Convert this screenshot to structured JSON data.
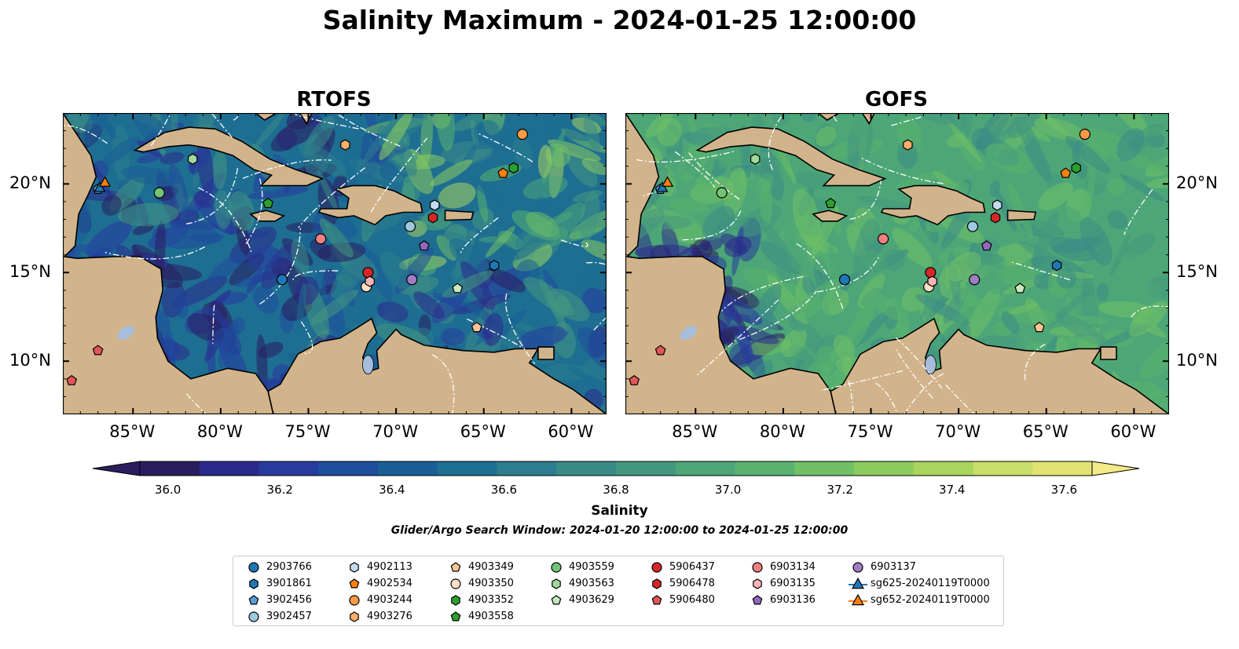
{
  "title": "Salinity Maximum - 2024-01-25 12:00:00",
  "panels": [
    {
      "title": "RTOFS"
    },
    {
      "title": "GOFS"
    }
  ],
  "axes": {
    "lon_ticks": [
      "85°W",
      "80°W",
      "75°W",
      "70°W",
      "65°W",
      "60°W"
    ],
    "lat_ticks": [
      "20°N",
      "15°N",
      "10°N"
    ]
  },
  "colorbar": {
    "label": "Salinity",
    "ticks": [
      "36.0",
      "36.2",
      "36.4",
      "36.6",
      "36.8",
      "37.0",
      "37.2",
      "37.4",
      "37.6"
    ],
    "min": 35.95,
    "max": 37.65,
    "colors": [
      "#2a1d5e",
      "#2b2a8c",
      "#273a9e",
      "#1f4d9c",
      "#1a5e96",
      "#1e6e92",
      "#2c7d8d",
      "#3a8b86",
      "#44977f",
      "#4da677",
      "#59b36e",
      "#71c066",
      "#8ccc5e",
      "#aad55d",
      "#c8de68",
      "#e2e373"
    ],
    "extend_low": "#2a1d5e",
    "extend_high": "#f4ea88"
  },
  "search_window": "Glider/Argo Search Window: 2024-01-20 12:00:00 to 2024-01-25 12:00:00",
  "legend": [
    {
      "label": "2903766",
      "marker": "circle",
      "color": "#1f77b4"
    },
    {
      "label": "3901861",
      "marker": "hexagon",
      "color": "#1f77b4"
    },
    {
      "label": "3902456",
      "marker": "pentagon",
      "color": "#5a9bd5"
    },
    {
      "label": "3902457",
      "marker": "circle",
      "color": "#9ecae1"
    },
    {
      "label": "4902113",
      "marker": "hexagon",
      "color": "#c6dbef"
    },
    {
      "label": "4902534",
      "marker": "pentagon",
      "color": "#ff7f0e"
    },
    {
      "label": "4903244",
      "marker": "circle",
      "color": "#fd9a45"
    },
    {
      "label": "4903276",
      "marker": "hexagon",
      "color": "#fdae6b"
    },
    {
      "label": "4903349",
      "marker": "pentagon",
      "color": "#fdc594"
    },
    {
      "label": "4903350",
      "marker": "circle",
      "color": "#fde0c5"
    },
    {
      "label": "4903352",
      "marker": "hexagon",
      "color": "#2ca02c"
    },
    {
      "label": "4903558",
      "marker": "pentagon",
      "color": "#2ca02c"
    },
    {
      "label": "4903559",
      "marker": "circle",
      "color": "#74c476"
    },
    {
      "label": "4903563",
      "marker": "hexagon",
      "color": "#a1d99b"
    },
    {
      "label": "4903629",
      "marker": "pentagon",
      "color": "#c7e9c0"
    },
    {
      "label": "5906437",
      "marker": "circle",
      "color": "#d62728"
    },
    {
      "label": "5906478",
      "marker": "hexagon",
      "color": "#d62728"
    },
    {
      "label": "5906480",
      "marker": "pentagon",
      "color": "#e15759"
    },
    {
      "label": "6903134",
      "marker": "circle",
      "color": "#f08080"
    },
    {
      "label": "6903135",
      "marker": "hexagon",
      "color": "#f7b6b6"
    },
    {
      "label": "6903136",
      "marker": "pentagon",
      "color": "#9467bd"
    },
    {
      "label": "6903137",
      "marker": "circle",
      "color": "#a07cc5"
    },
    {
      "label": "sg625-20240119T0000",
      "marker": "triangle-line",
      "color": "#1f77b4"
    },
    {
      "label": "sg652-20240119T0000",
      "marker": "triangle-line",
      "color": "#ff7f0e"
    }
  ],
  "stations": [
    {
      "id": "2903766",
      "lon": -76.5,
      "lat": 14.6
    },
    {
      "id": "3901861",
      "lon": -64.4,
      "lat": 15.4
    },
    {
      "id": "3902456",
      "lon": -87.0,
      "lat": 19.7
    },
    {
      "id": "3902457",
      "lon": -69.2,
      "lat": 17.6
    },
    {
      "id": "4902113",
      "lon": -67.8,
      "lat": 18.8
    },
    {
      "id": "4902534",
      "lon": -63.9,
      "lat": 20.6
    },
    {
      "id": "4903244",
      "lon": -62.8,
      "lat": 22.8
    },
    {
      "id": "4903276",
      "lon": -72.9,
      "lat": 22.2
    },
    {
      "id": "4903349",
      "lon": -65.4,
      "lat": 11.9
    },
    {
      "id": "4903350",
      "lon": -71.7,
      "lat": 14.2
    },
    {
      "id": "4903352",
      "lon": -63.3,
      "lat": 20.9
    },
    {
      "id": "4903558",
      "lon": -77.3,
      "lat": 18.9
    },
    {
      "id": "4903559",
      "lon": -83.5,
      "lat": 19.5
    },
    {
      "id": "4903563",
      "lon": -81.6,
      "lat": 21.4
    },
    {
      "id": "4903629",
      "lon": -66.5,
      "lat": 14.1
    },
    {
      "id": "5906437",
      "lon": -71.6,
      "lat": 15.0
    },
    {
      "id": "5906478",
      "lon": -67.9,
      "lat": 18.1
    },
    {
      "id": "5906480",
      "lon": -87.0,
      "lat": 10.6
    },
    {
      "id": "6903134",
      "lon": -74.3,
      "lat": 16.9
    },
    {
      "id": "6903135",
      "lon": -71.5,
      "lat": 14.5
    },
    {
      "id": "6903136",
      "lon": -68.4,
      "lat": 16.5
    },
    {
      "id": "6903137",
      "lon": -69.1,
      "lat": 14.6
    },
    {
      "id": "sg625-20240119T0000",
      "lon": -86.9,
      "lat": 19.8
    },
    {
      "id": "sg652-20240119T0000",
      "lon": -86.6,
      "lat": 20.1
    },
    {
      "id": "5906480",
      "lon": -88.5,
      "lat": 8.9
    }
  ],
  "map_extent": {
    "lon_min": -89,
    "lon_max": -58,
    "lat_min": 7,
    "lat_max": 24
  }
}
